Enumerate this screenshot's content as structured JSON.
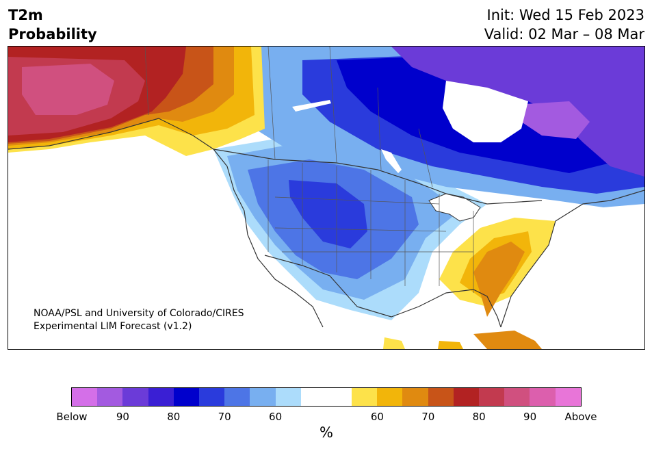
{
  "title": {
    "line1": "T2m",
    "line2": "Probability"
  },
  "init": {
    "line1": "Init: Wed 15 Feb 2023",
    "line2": "Valid: 02 Mar – 08 Mar"
  },
  "credit": {
    "line1": "NOAA/PSL and University of Colorado/CIRES",
    "line2": "Experimental LIM Forecast (v1.2)"
  },
  "colorbar": {
    "colors": [
      "#d46fe8",
      "#a35ae0",
      "#6b3bd8",
      "#3a1fd4",
      "#0000cc",
      "#2a3bdc",
      "#4d75e6",
      "#78aff0",
      "#acdcfb",
      "#ffffff",
      "#ffffff",
      "#fde24a",
      "#f2b50a",
      "#e08a10",
      "#c85418",
      "#b22222",
      "#c23a4f",
      "#d0507f",
      "#dc5fad",
      "#e875d8"
    ],
    "ticks": [
      "Below",
      "90",
      "80",
      "70",
      "60",
      "60",
      "70",
      "80",
      "90",
      "Above"
    ],
    "unit": "%"
  },
  "map_regions": [
    {
      "name": "alaska-above-90",
      "color": "#d0507f"
    },
    {
      "name": "alaska-above-80",
      "color": "#c23a4f"
    },
    {
      "name": "yukon-above-70",
      "color": "#c85418"
    },
    {
      "name": "bc-above-60",
      "color": "#f2b50a"
    },
    {
      "name": "canada-below-80",
      "color": "#0000cc"
    },
    {
      "name": "hudson-bay-below-90",
      "color": "#6b3bd8"
    },
    {
      "name": "western-us-below-70",
      "color": "#4d75e6"
    },
    {
      "name": "southeast-us-above-70",
      "color": "#e08a10"
    }
  ]
}
